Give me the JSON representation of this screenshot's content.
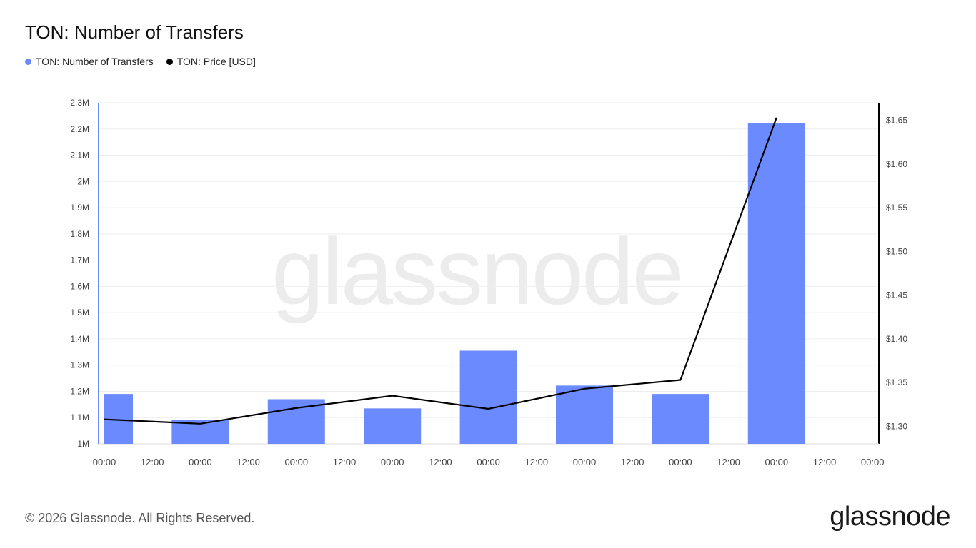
{
  "title": "TON: Number of Transfers",
  "legend": [
    {
      "label": "TON: Number of Transfers",
      "color": "#6b8afd"
    },
    {
      "label": "TON: Price [USD]",
      "color": "#000000"
    }
  ],
  "watermark": "glassnode",
  "footer": "© 2026 Glassnode. All Rights Reserved.",
  "brand": "glassnode",
  "chart_data": {
    "type": "bar",
    "title": "TON: Number of Transfers",
    "x_ticks": [
      "00:00",
      "12:00",
      "00:00",
      "12:00",
      "00:00",
      "12:00",
      "00:00",
      "12:00",
      "00:00",
      "12:00",
      "00:00",
      "12:00",
      "00:00",
      "12:00",
      "00:00",
      "12:00",
      "00:00"
    ],
    "y_left": {
      "ticks": [
        "1M",
        "1.1M",
        "1.2M",
        "1.3M",
        "1.4M",
        "1.5M",
        "1.6M",
        "1.7M",
        "1.8M",
        "1.9M",
        "2M",
        "2.1M",
        "2.2M",
        "2.3M"
      ],
      "range": [
        1000000,
        2300000
      ]
    },
    "y_right": {
      "ticks": [
        "$1.30",
        "$1.35",
        "$1.40",
        "$1.45",
        "$1.50",
        "$1.55",
        "$1.60",
        "$1.65"
      ],
      "range": [
        1.28,
        1.67
      ]
    },
    "grid": true,
    "legend_position": "top-left",
    "series": [
      {
        "name": "TON: Number of Transfers",
        "type": "bar",
        "axis": "left",
        "color": "#6b8afd",
        "values": [
          1190000,
          1090000,
          1170000,
          1135000,
          1355000,
          1222000,
          1190000,
          2222000
        ]
      },
      {
        "name": "TON: Price [USD]",
        "type": "line",
        "axis": "right",
        "color": "#000000",
        "values": [
          1.308,
          1.303,
          1.321,
          1.335,
          1.32,
          1.343,
          1.353,
          1.653
        ]
      }
    ]
  }
}
